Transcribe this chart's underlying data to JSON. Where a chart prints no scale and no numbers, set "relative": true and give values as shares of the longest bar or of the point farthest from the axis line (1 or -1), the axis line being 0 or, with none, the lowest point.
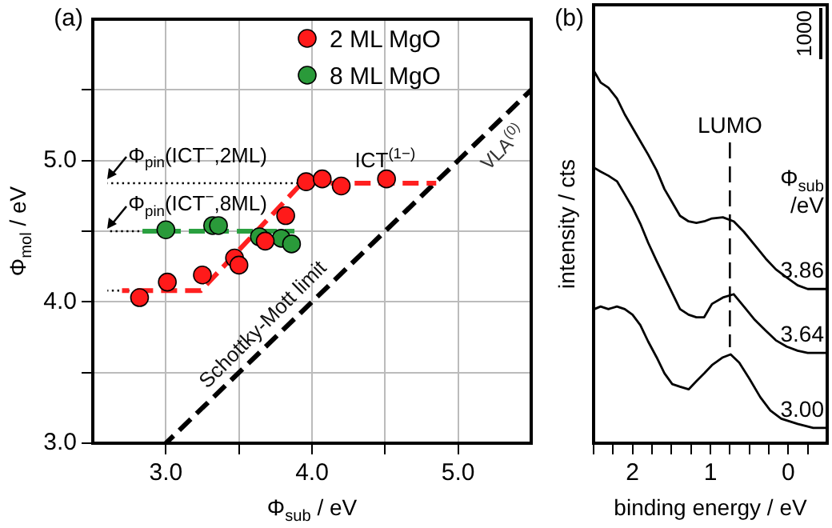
{
  "chart_data": [
    {
      "type": "scatter",
      "title": "(a)",
      "xlabel": "Φ$_{sub}$ / eV",
      "ylabel": "Φ$_{mol}$ / eV",
      "xlim": [
        2.5,
        5.5
      ],
      "ylim": [
        3,
        6
      ],
      "xticks": [
        {
          "value": 3,
          "label": "3.0"
        },
        {
          "value": 3.5,
          "label": null
        },
        {
          "value": 4,
          "label": "4.0"
        },
        {
          "value": 4.5,
          "label": null
        },
        {
          "value": 5,
          "label": "5.0"
        }
      ],
      "yticks": [
        {
          "value": 3,
          "label": "3.0"
        },
        {
          "value": 3.5,
          "label": null
        },
        {
          "value": 4,
          "label": "4.0"
        },
        {
          "value": 4.5,
          "label": null
        },
        {
          "value": 5,
          "label": "5.0"
        },
        {
          "value": 5.5,
          "label": null
        }
      ],
      "grid": true,
      "legend": "top right",
      "series": [
        {
          "type": "scatter",
          "name": "2 ML MgO",
          "color": "#ff1a1a",
          "marker": "circle",
          "x": [
            2.82,
            3.01,
            3.25,
            3.47,
            3.5,
            3.68,
            3.82,
            3.96,
            4.07,
            4.2,
            4.51
          ],
          "values": [
            4.03,
            4.14,
            4.19,
            4.31,
            4.26,
            4.43,
            4.61,
            4.85,
            4.87,
            4.82,
            4.87
          ]
        },
        {
          "type": "scatter",
          "name": "8 ML MgO",
          "color": "#2a9a3a",
          "marker": "circle",
          "x": [
            3.0,
            3.32,
            3.36,
            3.64,
            3.79,
            3.86
          ],
          "values": [
            4.51,
            4.54,
            4.54,
            4.46,
            4.45,
            4.41
          ]
        },
        {
          "type": "line",
          "color": "#ff2020",
          "line_style": "dashed",
          "x": [
            2.7,
            3.24,
            3.93,
            4.85
          ],
          "values": [
            4.08,
            4.08,
            4.84,
            4.84
          ]
        },
        {
          "type": "line",
          "color": "#2aa040",
          "line_style": "dashed",
          "x": [
            2.84,
            3.88
          ],
          "values": [
            4.5,
            4.5
          ]
        },
        {
          "type": "line",
          "color": "#000000",
          "line_style": "dashed",
          "x": [
            3.0,
            5.5
          ],
          "values": [
            3.0,
            5.5
          ]
        },
        {
          "type": "line",
          "color": "#000000",
          "line_style": "dotted",
          "x": [
            2.6,
            3.9
          ],
          "values": [
            4.84,
            4.84
          ]
        },
        {
          "type": "line",
          "color": "#000000",
          "line_style": "dotted",
          "x": [
            2.6,
            2.85
          ],
          "values": [
            4.5,
            4.5
          ]
        },
        {
          "type": "line",
          "color": "#000000",
          "line_style": "dotted",
          "x": [
            2.6,
            2.75
          ],
          "values": [
            4.08,
            4.08
          ]
        }
      ],
      "annotations": [
        {
          "text": "Φ$_{pin}$(ICT$^{−}$,2ML)",
          "x": 2.6,
          "y": 4.84
        },
        {
          "text": "Φ$_{pin}$(ICT$^{−}$,8ML)",
          "x": 2.6,
          "y": 4.5
        },
        {
          "text": "ICT$^{(1−)}$",
          "x": 4.5,
          "y": 4.84
        },
        {
          "text": "Schottky-Mott limit",
          "x": 3.75,
          "y": 3.75
        },
        {
          "text": "VLA$^{(0)}$",
          "x": 5.2,
          "y": 5.2
        }
      ]
    },
    {
      "type": "line",
      "title": "(b)",
      "xlabel": "binding energy / eV",
      "ylabel": "intensity / cts",
      "relative": true,
      "xlim": [
        2.5,
        -0.5
      ],
      "xticks": [
        {
          "value": 2.5,
          "label": null
        },
        {
          "value": 2.25,
          "label": null
        },
        {
          "value": 2,
          "label": "2"
        },
        {
          "value": 1.75,
          "label": null
        },
        {
          "value": 1.5,
          "label": null
        },
        {
          "value": 1.25,
          "label": null
        },
        {
          "value": 1,
          "label": "1"
        },
        {
          "value": 0.75,
          "label": null
        },
        {
          "value": 0.5,
          "label": null
        },
        {
          "value": 0.25,
          "label": null
        },
        {
          "value": 0,
          "label": "0"
        },
        {
          "value": -0.25,
          "label": null
        }
      ],
      "legend_title": "Φ$_{sub}$ /eV",
      "ref_lines": [
        {
          "axis": "x",
          "value": 0.75,
          "label": "LUMO",
          "line_style": "dashed",
          "color": "#000000"
        }
      ],
      "annotations": [
        "1000"
      ],
      "x": [
        2.49,
        2.41,
        2.31,
        2.2,
        2.1,
        2.0,
        1.9,
        1.8,
        1.69,
        1.59,
        1.49,
        1.39,
        1.28,
        1.18,
        1.08,
        0.98,
        0.84,
        0.7,
        0.57,
        0.43,
        0.29,
        0.16,
        0.02,
        -0.12,
        -0.25,
        -0.5
      ],
      "series": [
        {
          "name": "3.86",
          "color": "#000000",
          "values": [
            1.0,
            0.971,
            0.957,
            0.928,
            0.885,
            0.849,
            0.813,
            0.777,
            0.734,
            0.684,
            0.648,
            0.612,
            0.597,
            0.593,
            0.597,
            0.605,
            0.608,
            0.597,
            0.569,
            0.533,
            0.497,
            0.468,
            0.446,
            0.425,
            0.415,
            0.415
          ]
        },
        {
          "name": "3.64",
          "color": "#000000",
          "values": [
            0.741,
            0.731,
            0.72,
            0.705,
            0.67,
            0.634,
            0.591,
            0.54,
            0.49,
            0.447,
            0.404,
            0.361,
            0.346,
            0.339,
            0.339,
            0.375,
            0.392,
            0.401,
            0.368,
            0.332,
            0.303,
            0.277,
            0.26,
            0.249,
            0.243,
            0.243
          ]
        },
        {
          "name": "3.00",
          "color": "#000000",
          "x": [
            2.49,
            2.41,
            2.31,
            2.2,
            2.1,
            2.0,
            1.9,
            1.8,
            1.69,
            1.59,
            1.49,
            1.39,
            1.28,
            1.18,
            1.08,
            0.98,
            0.84,
            0.74,
            0.63,
            0.5,
            0.36,
            0.23,
            0.09,
            -0.12,
            -0.32,
            -0.5
          ],
          "values": [
            0.361,
            0.368,
            0.361,
            0.368,
            0.361,
            0.346,
            0.318,
            0.274,
            0.231,
            0.188,
            0.159,
            0.152,
            0.145,
            0.167,
            0.188,
            0.21,
            0.231,
            0.239,
            0.217,
            0.174,
            0.124,
            0.088,
            0.066,
            0.052,
            0.041,
            0.041
          ]
        }
      ]
    }
  ]
}
